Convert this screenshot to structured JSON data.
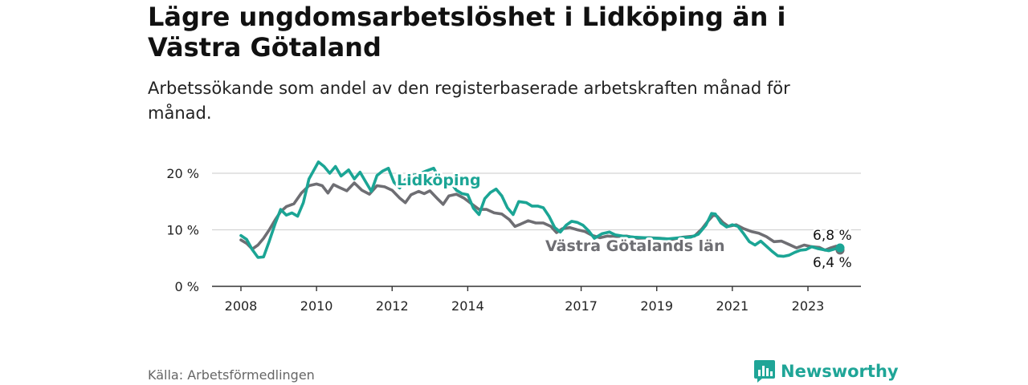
{
  "title": "Lägre ungdomsarbetslöshet i Lidköping än i Västra Götaland",
  "subtitle": "Arbetssökande som andel av den registerbaserade arbetskraften månad för månad.",
  "source": "Källa: Arbetsförmedlingen",
  "brand": "Newsworthy",
  "colors": {
    "teal": "#1ba595",
    "gray": "#6e6e73",
    "grid": "#d4d4d4",
    "axis": "#333333"
  },
  "chart_data": {
    "type": "line",
    "ylim": [
      0,
      20
    ],
    "y_ticks": [
      {
        "value": 0,
        "label": "0 %"
      },
      {
        "value": 10,
        "label": "10 %"
      },
      {
        "value": 20,
        "label": "20 %"
      }
    ],
    "x_range": [
      2007.4,
      2024.6
    ],
    "x_ticks": [
      {
        "value": 2008,
        "label": "2008"
      },
      {
        "value": 2010,
        "label": "2010"
      },
      {
        "value": 2012,
        "label": "2012"
      },
      {
        "value": 2014,
        "label": "2014"
      },
      {
        "value": 2017,
        "label": "2017"
      },
      {
        "value": 2019,
        "label": "2019"
      },
      {
        "value": 2021,
        "label": "2021"
      },
      {
        "value": 2023,
        "label": "2023"
      }
    ],
    "series": [
      {
        "name": "Västra Götalands län",
        "label": "Västra Götalands län",
        "color": "#6e6e73",
        "end_label": "6,4 %",
        "points": [
          [
            2008.0,
            8.2
          ],
          [
            2008.15,
            7.6
          ],
          [
            2008.3,
            6.6
          ],
          [
            2008.45,
            7.3
          ],
          [
            2008.6,
            8.5
          ],
          [
            2008.75,
            10.0
          ],
          [
            2008.9,
            11.7
          ],
          [
            2009.05,
            13.2
          ],
          [
            2009.2,
            14.1
          ],
          [
            2009.4,
            14.6
          ],
          [
            2009.6,
            16.5
          ],
          [
            2009.8,
            17.8
          ],
          [
            2010.0,
            18.1
          ],
          [
            2010.15,
            17.8
          ],
          [
            2010.3,
            16.5
          ],
          [
            2010.45,
            18.0
          ],
          [
            2010.6,
            17.5
          ],
          [
            2010.8,
            16.9
          ],
          [
            2011.0,
            18.3
          ],
          [
            2011.2,
            17.0
          ],
          [
            2011.4,
            16.3
          ],
          [
            2011.6,
            17.8
          ],
          [
            2011.8,
            17.6
          ],
          [
            2012.0,
            17.0
          ],
          [
            2012.2,
            15.6
          ],
          [
            2012.35,
            14.8
          ],
          [
            2012.5,
            16.2
          ],
          [
            2012.7,
            16.8
          ],
          [
            2012.85,
            16.4
          ],
          [
            2013.0,
            16.9
          ],
          [
            2013.2,
            15.5
          ],
          [
            2013.35,
            14.5
          ],
          [
            2013.5,
            16.0
          ],
          [
            2013.7,
            16.3
          ],
          [
            2013.9,
            15.6
          ],
          [
            2014.1,
            14.6
          ],
          [
            2014.3,
            13.6
          ],
          [
            2014.5,
            13.6
          ],
          [
            2014.7,
            13.0
          ],
          [
            2014.9,
            12.8
          ],
          [
            2015.1,
            11.8
          ],
          [
            2015.25,
            10.6
          ],
          [
            2015.4,
            11.0
          ],
          [
            2015.6,
            11.6
          ],
          [
            2015.8,
            11.2
          ],
          [
            2016.0,
            11.2
          ],
          [
            2016.2,
            10.6
          ],
          [
            2016.35,
            9.5
          ],
          [
            2016.5,
            10.2
          ],
          [
            2016.7,
            10.4
          ],
          [
            2016.9,
            10.0
          ],
          [
            2017.1,
            9.7
          ],
          [
            2017.3,
            9.0
          ],
          [
            2017.5,
            8.6
          ],
          [
            2017.7,
            8.9
          ],
          [
            2017.9,
            8.8
          ],
          [
            2018.2,
            8.9
          ],
          [
            2018.5,
            8.5
          ],
          [
            2018.8,
            8.6
          ],
          [
            2019.1,
            8.5
          ],
          [
            2019.4,
            8.3
          ],
          [
            2019.7,
            8.7
          ],
          [
            2020.0,
            8.9
          ],
          [
            2020.2,
            10.2
          ],
          [
            2020.35,
            11.5
          ],
          [
            2020.5,
            12.6
          ],
          [
            2020.6,
            12.4
          ],
          [
            2020.75,
            11.3
          ],
          [
            2020.9,
            10.6
          ],
          [
            2021.1,
            10.9
          ],
          [
            2021.3,
            10.2
          ],
          [
            2021.5,
            9.7
          ],
          [
            2021.7,
            9.4
          ],
          [
            2021.9,
            8.8
          ],
          [
            2022.1,
            7.9
          ],
          [
            2022.3,
            8.0
          ],
          [
            2022.5,
            7.4
          ],
          [
            2022.7,
            6.8
          ],
          [
            2022.9,
            7.3
          ],
          [
            2023.1,
            7.0
          ],
          [
            2023.3,
            6.9
          ],
          [
            2023.45,
            6.4
          ],
          [
            2023.6,
            6.8
          ],
          [
            2023.75,
            7.1
          ],
          [
            2023.85,
            6.4
          ]
        ]
      },
      {
        "name": "Lidköping",
        "label": "Lidköping",
        "color": "#1ba595",
        "end_label": "6,8 %",
        "points": [
          [
            2008.0,
            9.0
          ],
          [
            2008.15,
            8.3
          ],
          [
            2008.3,
            6.5
          ],
          [
            2008.45,
            5.1
          ],
          [
            2008.6,
            5.2
          ],
          [
            2008.75,
            8.0
          ],
          [
            2008.9,
            11.0
          ],
          [
            2009.05,
            13.6
          ],
          [
            2009.2,
            12.6
          ],
          [
            2009.35,
            13.0
          ],
          [
            2009.5,
            12.4
          ],
          [
            2009.65,
            14.8
          ],
          [
            2009.8,
            19.0
          ],
          [
            2009.95,
            20.8
          ],
          [
            2010.05,
            22.0
          ],
          [
            2010.2,
            21.2
          ],
          [
            2010.35,
            20.0
          ],
          [
            2010.5,
            21.2
          ],
          [
            2010.65,
            19.5
          ],
          [
            2010.85,
            20.6
          ],
          [
            2011.0,
            19.0
          ],
          [
            2011.15,
            20.2
          ],
          [
            2011.3,
            18.5
          ],
          [
            2011.45,
            16.8
          ],
          [
            2011.6,
            19.6
          ],
          [
            2011.75,
            20.4
          ],
          [
            2011.9,
            20.9
          ],
          [
            2012.05,
            18.4
          ],
          [
            2012.2,
            17.4
          ],
          [
            2012.35,
            18.9
          ],
          [
            2012.5,
            19.6
          ],
          [
            2012.7,
            19.8
          ],
          [
            2012.9,
            20.4
          ],
          [
            2013.1,
            20.9
          ],
          [
            2013.25,
            19.0
          ],
          [
            2013.4,
            18.7
          ],
          [
            2013.55,
            18.3
          ],
          [
            2013.7,
            17.0
          ],
          [
            2013.85,
            16.4
          ],
          [
            2014.0,
            16.2
          ],
          [
            2014.15,
            13.8
          ],
          [
            2014.3,
            12.7
          ],
          [
            2014.45,
            15.5
          ],
          [
            2014.6,
            16.6
          ],
          [
            2014.75,
            17.2
          ],
          [
            2014.9,
            16.0
          ],
          [
            2015.05,
            13.9
          ],
          [
            2015.2,
            12.7
          ],
          [
            2015.35,
            15.0
          ],
          [
            2015.55,
            14.8
          ],
          [
            2015.7,
            14.2
          ],
          [
            2015.85,
            14.2
          ],
          [
            2016.0,
            13.9
          ],
          [
            2016.15,
            12.4
          ],
          [
            2016.3,
            10.4
          ],
          [
            2016.45,
            9.6
          ],
          [
            2016.6,
            10.8
          ],
          [
            2016.75,
            11.5
          ],
          [
            2016.9,
            11.3
          ],
          [
            2017.05,
            10.8
          ],
          [
            2017.2,
            9.8
          ],
          [
            2017.35,
            8.5
          ],
          [
            2017.55,
            9.3
          ],
          [
            2017.75,
            9.6
          ],
          [
            2017.9,
            9.1
          ],
          [
            2018.1,
            8.9
          ],
          [
            2018.4,
            8.7
          ],
          [
            2018.7,
            8.6
          ],
          [
            2019.0,
            8.5
          ],
          [
            2019.3,
            8.4
          ],
          [
            2019.6,
            8.6
          ],
          [
            2019.9,
            8.7
          ],
          [
            2020.1,
            9.2
          ],
          [
            2020.3,
            10.8
          ],
          [
            2020.45,
            12.9
          ],
          [
            2020.55,
            12.8
          ],
          [
            2020.7,
            11.2
          ],
          [
            2020.85,
            10.5
          ],
          [
            2021.0,
            10.9
          ],
          [
            2021.15,
            10.6
          ],
          [
            2021.3,
            9.3
          ],
          [
            2021.45,
            7.9
          ],
          [
            2021.6,
            7.3
          ],
          [
            2021.75,
            8.0
          ],
          [
            2021.9,
            7.1
          ],
          [
            2022.05,
            6.2
          ],
          [
            2022.2,
            5.4
          ],
          [
            2022.35,
            5.3
          ],
          [
            2022.5,
            5.5
          ],
          [
            2022.65,
            6.0
          ],
          [
            2022.8,
            6.4
          ],
          [
            2022.95,
            6.5
          ],
          [
            2023.1,
            7.0
          ],
          [
            2023.25,
            6.7
          ],
          [
            2023.4,
            6.5
          ],
          [
            2023.55,
            6.3
          ],
          [
            2023.7,
            6.6
          ],
          [
            2023.85,
            6.8
          ]
        ]
      }
    ]
  }
}
